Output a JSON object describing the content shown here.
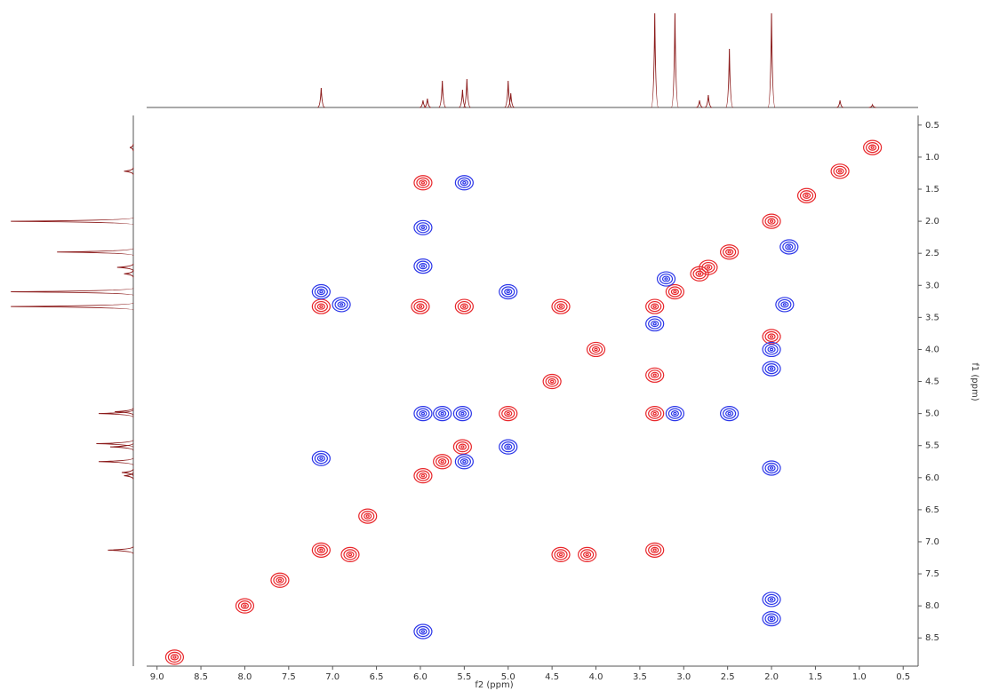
{
  "chart_data": {
    "type": "contour2d",
    "x_label": "f2 (ppm)",
    "y_label": "f1 (ppm)",
    "xlim": [
      9.27,
      0.33
    ],
    "ylim": [
      0.35,
      8.94
    ],
    "xticks": [
      {
        "value": 9,
        "label": "9.0"
      },
      8.5,
      {
        "value": 8,
        "label": "8.0"
      },
      7.5,
      {
        "value": 7,
        "label": "7.0"
      },
      6.5,
      {
        "value": 6,
        "label": "6.0"
      },
      5.5,
      {
        "value": 5,
        "label": "5.0"
      },
      4.5,
      {
        "value": 4,
        "label": "4.0"
      },
      3.5,
      {
        "value": 3,
        "label": "3.0"
      },
      2.5,
      {
        "value": 2,
        "label": "2.0"
      },
      1.5,
      {
        "value": 1,
        "label": "1.0"
      },
      0.5
    ],
    "yticks": [
      0.5,
      {
        "value": 1,
        "label": "1.0"
      },
      1.5,
      {
        "value": 2,
        "label": "2.0"
      },
      2.5,
      {
        "value": 3,
        "label": "3.0"
      },
      3.5,
      {
        "value": 4,
        "label": "4.0"
      },
      4.5,
      {
        "value": 5,
        "label": "5.0"
      },
      5.5,
      {
        "value": 6,
        "label": "6.0"
      },
      6.5,
      {
        "value": 7,
        "label": "7.0"
      },
      7.5,
      {
        "value": 8,
        "label": "8.0"
      },
      8.5
    ],
    "projection": {
      "color": "#8b1a1a",
      "shifts": [
        7.13,
        5.97,
        5.92,
        5.75,
        5.52,
        5.47,
        5.0,
        4.97,
        3.33,
        3.1,
        2.82,
        2.72,
        2.48,
        2.0,
        1.22,
        0.85
      ],
      "heights": [
        22,
        8,
        10,
        30,
        20,
        32,
        30,
        16,
        106,
        106,
        8,
        14,
        66,
        106,
        8,
        3
      ]
    },
    "series": [
      {
        "color": "#e8262a",
        "x": [
          7.13,
          5.97,
          5.75,
          5.52,
          5.0,
          3.33,
          3.1,
          2.82,
          2.72,
          2.48,
          2.0,
          1.22,
          0.85,
          8.8,
          8.0,
          7.6,
          6.6,
          4.5,
          4.0,
          1.6,
          7.13,
          3.33,
          6.0,
          4.4,
          4.4,
          4.1,
          6.8,
          5.5,
          3.33,
          3.33,
          2.0,
          5.97
        ],
        "y": [
          7.13,
          5.97,
          5.75,
          5.52,
          5.0,
          3.33,
          3.1,
          2.82,
          2.72,
          2.48,
          2.0,
          1.22,
          0.85,
          8.8,
          8.0,
          7.6,
          6.6,
          4.5,
          4.0,
          1.6,
          3.33,
          7.13,
          3.33,
          3.33,
          7.2,
          7.2,
          7.2,
          3.33,
          4.4,
          5.0,
          3.8,
          1.4
        ]
      },
      {
        "color": "#2a35e8",
        "x": [
          5.0,
          5.52,
          5.97,
          5.75,
          5.0,
          7.13,
          5.97,
          5.5,
          2.0,
          2.0,
          2.0,
          2.0,
          1.85,
          3.1,
          2.48,
          5.97,
          5.5,
          6.9,
          3.2,
          1.8,
          2.0,
          3.33,
          5.97,
          7.13
        ],
        "y": [
          5.52,
          5.0,
          5.0,
          5.0,
          3.1,
          3.1,
          2.7,
          1.4,
          4.0,
          7.9,
          8.2,
          5.85,
          3.3,
          5.0,
          5.0,
          8.4,
          5.75,
          3.3,
          2.9,
          2.4,
          4.3,
          3.6,
          2.1,
          5.7
        ]
      }
    ]
  }
}
